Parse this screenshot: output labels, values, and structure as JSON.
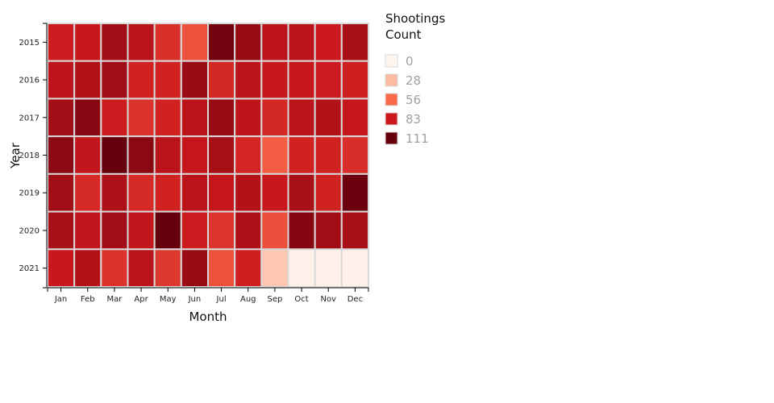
{
  "chart_data": {
    "type": "heatmap",
    "xlabel": "Month",
    "ylabel": "Year",
    "x": [
      "Jan",
      "Feb",
      "Mar",
      "Apr",
      "May",
      "Jun",
      "Jul",
      "Aug",
      "Sep",
      "Oct",
      "Nov",
      "Dec"
    ],
    "y": [
      "2015",
      "2016",
      "2017",
      "2018",
      "2019",
      "2020",
      "2021"
    ],
    "values": [
      [
        82,
        84,
        95,
        88,
        75,
        64,
        108,
        98,
        87,
        88,
        83,
        93
      ],
      [
        87,
        90,
        95,
        80,
        80,
        97,
        78,
        88,
        84,
        85,
        82,
        81
      ],
      [
        95,
        102,
        82,
        74,
        80,
        88,
        98,
        87,
        78,
        88,
        90,
        85
      ],
      [
        101,
        86,
        114,
        101,
        88,
        85,
        93,
        79,
        60,
        80,
        80,
        76
      ],
      [
        95,
        77,
        91,
        77,
        80,
        88,
        85,
        90,
        84,
        93,
        80,
        110
      ],
      [
        93,
        86,
        95,
        86,
        111,
        82,
        73,
        91,
        65,
        103,
        95,
        93
      ],
      [
        84,
        90,
        74,
        88,
        72,
        97,
        64,
        81,
        22,
        2,
        2,
        2
      ]
    ],
    "legend": {
      "title_lines": [
        "Shootings",
        "Count"
      ],
      "ticks": [
        0,
        28,
        56,
        83,
        111
      ],
      "tick_labels": [
        "0",
        "28",
        "56",
        "83",
        "111"
      ],
      "placement": "right"
    },
    "color_scale": [
      "#fff5f0",
      "#fcbba1",
      "#fb6a4a",
      "#cb181d",
      "#67000d"
    ],
    "cell_border_color": "#d9d9d9",
    "grid": false
  }
}
